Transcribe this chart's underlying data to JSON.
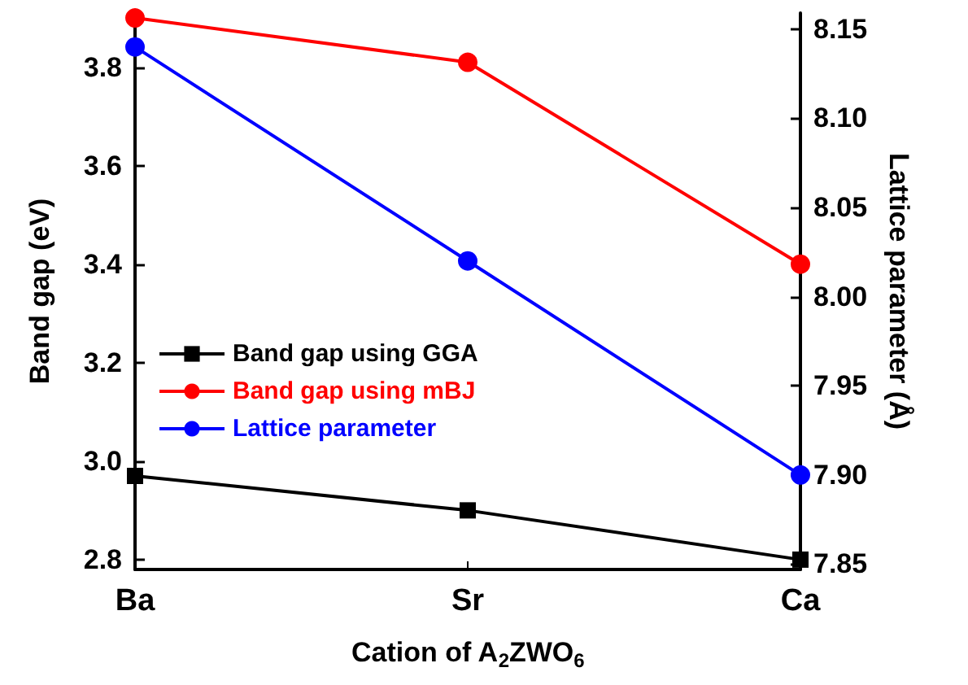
{
  "chart_data": {
    "type": "line",
    "xlabel": "Cation of A$_{2}$ZWO$_{6}$",
    "ylabel": "Band gap (eV)",
    "y2label": "Lattice parameter (Å)",
    "categories": [
      "Ba",
      "Sr",
      "Ca"
    ],
    "series": [
      {
        "name": "Band gap using GGA",
        "color": "#000000",
        "marker": "square",
        "values": [
          2.97,
          2.9,
          2.8
        ]
      },
      {
        "name": "Band gap using mBJ",
        "color": "#ff0000",
        "marker": "circle",
        "values": [
          3.9,
          3.81,
          3.4
        ]
      },
      {
        "name": "Lattice parameter",
        "color": "#0000ff",
        "marker": "circle",
        "axis": "y2",
        "values": [
          8.14,
          8.02,
          7.9
        ]
      }
    ],
    "ylim": [
      2.78,
      3.91
    ],
    "yticks": [
      2.8,
      {
        "value": 3,
        "label": "3.0"
      },
      3.2,
      3.4,
      3.6,
      3.8
    ],
    "y2lim": [
      7.847,
      8.159
    ],
    "y2ticks": [
      7.85,
      {
        "value": 7.9,
        "label": "7.90"
      },
      7.95,
      {
        "value": 8,
        "label": "8.00"
      },
      8.05,
      {
        "value": 8.1,
        "label": "8.10"
      },
      8.15
    ],
    "legend": "left",
    "grid": false
  }
}
